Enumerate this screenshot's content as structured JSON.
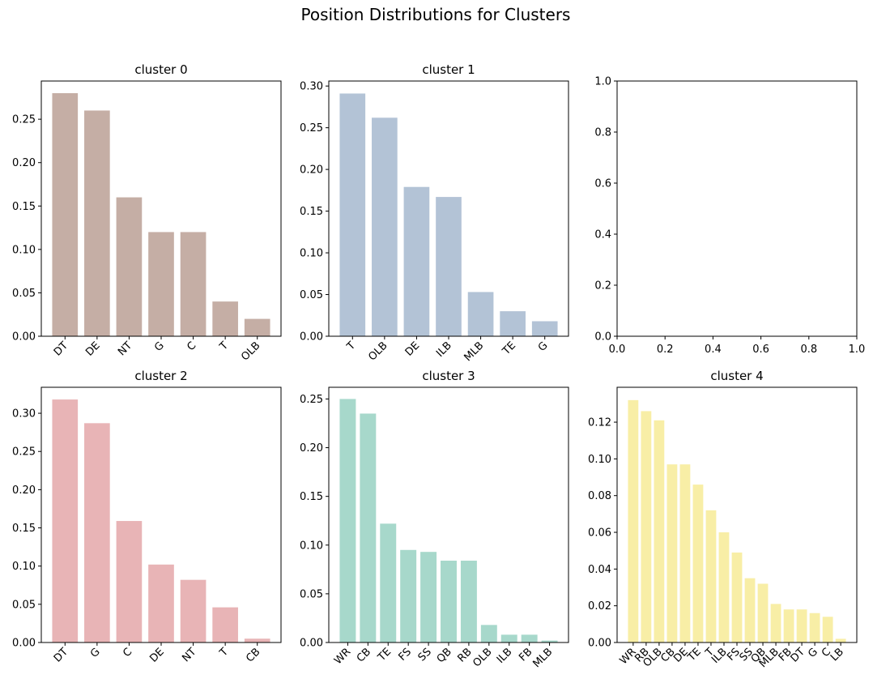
{
  "title": "Position Distributions for Clusters",
  "chart_data": [
    {
      "type": "bar",
      "title": "cluster 0",
      "color": "#c5aea5",
      "categories": [
        "DT",
        "DE",
        "NT",
        "G",
        "C",
        "T",
        "OLB"
      ],
      "values": [
        0.28,
        0.26,
        0.16,
        0.12,
        0.12,
        0.04,
        0.02
      ],
      "ylim": [
        0,
        0.294
      ],
      "yticks": [
        "0.00",
        "0.05",
        "0.10",
        "0.15",
        "0.20",
        "0.25"
      ],
      "xlabel_rotate": true
    },
    {
      "type": "bar",
      "title": "cluster 1",
      "color": "#b3c3d6",
      "categories": [
        "T",
        "OLB",
        "DE",
        "ILB",
        "MLB",
        "TE",
        "G"
      ],
      "values": [
        0.291,
        0.262,
        0.179,
        0.167,
        0.053,
        0.03,
        0.018
      ],
      "ylim": [
        0,
        0.306
      ],
      "yticks": [
        "0.00",
        "0.05",
        "0.10",
        "0.15",
        "0.20",
        "0.25",
        "0.30"
      ],
      "xlabel_rotate": true
    },
    {
      "type": "empty",
      "title": "",
      "xlim": [
        0,
        1
      ],
      "ylim": [
        0,
        1
      ],
      "xticks": [
        "0.0",
        "0.2",
        "0.4",
        "0.6",
        "0.8",
        "1.0"
      ],
      "yticks": [
        "0.0",
        "0.2",
        "0.4",
        "0.6",
        "0.8",
        "1.0"
      ]
    },
    {
      "type": "bar",
      "title": "cluster 2",
      "color": "#e8b4b6",
      "categories": [
        "DT",
        "G",
        "C",
        "DE",
        "NT",
        "T",
        "CB"
      ],
      "values": [
        0.318,
        0.287,
        0.159,
        0.102,
        0.082,
        0.046,
        0.005
      ],
      "ylim": [
        0,
        0.334
      ],
      "yticks": [
        "0.00",
        "0.05",
        "0.10",
        "0.15",
        "0.20",
        "0.25",
        "0.30"
      ],
      "xlabel_rotate": true
    },
    {
      "type": "bar",
      "title": "cluster 3",
      "color": "#a7d8cb",
      "categories": [
        "WR",
        "CB",
        "TE",
        "FS",
        "SS",
        "QB",
        "RB",
        "OLB",
        "ILB",
        "FB",
        "MLB"
      ],
      "values": [
        0.25,
        0.235,
        0.122,
        0.095,
        0.093,
        0.084,
        0.084,
        0.018,
        0.008,
        0.008,
        0.002
      ],
      "ylim": [
        0,
        0.262
      ],
      "yticks": [
        "0.00",
        "0.05",
        "0.10",
        "0.15",
        "0.20",
        "0.25"
      ],
      "xlabel_rotate": true
    },
    {
      "type": "bar",
      "title": "cluster 4",
      "color": "#f8eea6",
      "categories": [
        "WR",
        "RB",
        "OLB",
        "CB",
        "DE",
        "TE",
        "T",
        "ILB",
        "FS",
        "SS",
        "QB",
        "MLB",
        "FB",
        "DT",
        "G",
        "C",
        "LB"
      ],
      "values": [
        0.132,
        0.126,
        0.121,
        0.097,
        0.097,
        0.086,
        0.072,
        0.06,
        0.049,
        0.035,
        0.032,
        0.021,
        0.018,
        0.018,
        0.016,
        0.014,
        0.002
      ],
      "ylim": [
        0,
        0.139
      ],
      "yticks": [
        "0.00",
        "0.02",
        "0.04",
        "0.06",
        "0.08",
        "0.10",
        "0.12"
      ],
      "xlabel_rotate": true
    }
  ]
}
